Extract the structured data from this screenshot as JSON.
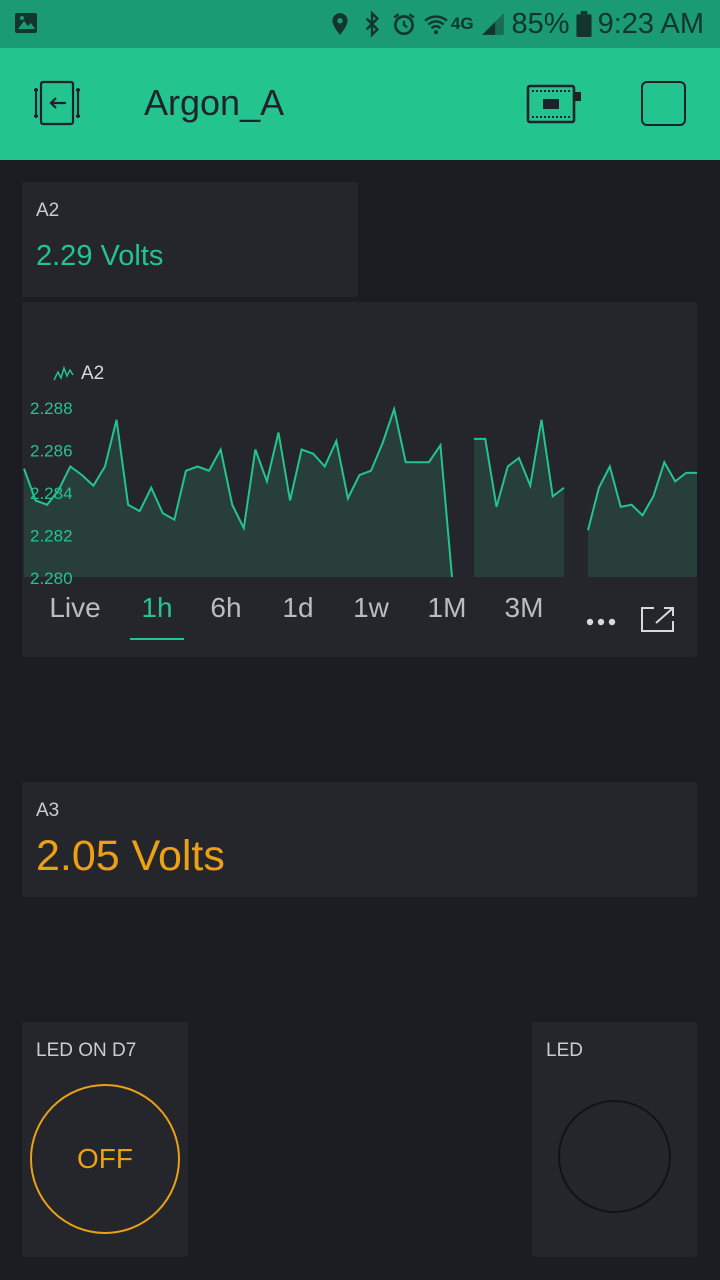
{
  "statusbar": {
    "battery": "85%",
    "time": "9:23 AM",
    "network": "4G",
    "icons": [
      "image-icon",
      "location-icon",
      "bluetooth-icon",
      "alarm-icon",
      "wifi-icon",
      "signal-icon",
      "battery-icon"
    ]
  },
  "appbar": {
    "title": "Argon_A",
    "bg_color": "#23c48e",
    "icons": [
      "exit-icon",
      "device-icon",
      "stop-icon"
    ]
  },
  "widgets": {
    "a2_display": {
      "label": "A2",
      "value": "2.29 Volts",
      "color": "#23c48e"
    },
    "chart": {
      "legend": "A2",
      "tabs": [
        "Live",
        "1h",
        "6h",
        "1d",
        "1w",
        "1M",
        "3M"
      ],
      "active_tab": "1h",
      "more_icon": "more-icon",
      "expand_icon": "expand-icon"
    },
    "a3_display": {
      "label": "A3",
      "value": "2.05 Volts",
      "color": "#eca014"
    },
    "led_button": {
      "label": "LED ON D7",
      "state": "OFF",
      "color": "#eca014"
    },
    "led": {
      "label": "LED"
    }
  },
  "chart_data": {
    "type": "area",
    "series": [
      {
        "name": "A2",
        "color": "#23c48e",
        "segments": [
          [
            2.2851,
            2.2836,
            2.2834,
            2.2841,
            2.2852,
            2.2848,
            2.2843,
            2.2852,
            2.2874,
            2.2834,
            2.2831,
            2.2842,
            2.283,
            2.2827,
            2.285,
            2.2852,
            2.285,
            2.286,
            2.2834,
            2.2823,
            2.286,
            2.2845,
            2.2868,
            2.2836,
            2.286,
            2.2858,
            2.2852,
            2.2864,
            2.2837,
            2.2848,
            2.285,
            2.2863,
            2.2879,
            2.2854,
            2.2854,
            2.2854,
            2.2862,
            2.28
          ],
          [
            2.2865,
            2.2865,
            2.2833,
            2.2852,
            2.2856,
            2.2843,
            2.2874,
            2.2838,
            2.2842
          ],
          [
            2.2822,
            2.2842,
            2.2852,
            2.2833,
            2.2834,
            2.2829,
            2.2838,
            2.2854,
            2.2845,
            2.2849,
            2.2849
          ]
        ]
      }
    ],
    "yticks": [
      "2.288",
      "2.286",
      "2.284",
      "2.282",
      "2.280"
    ],
    "ylim": [
      2.28,
      2.2888
    ],
    "grid": false,
    "legend_position": "top-left"
  }
}
